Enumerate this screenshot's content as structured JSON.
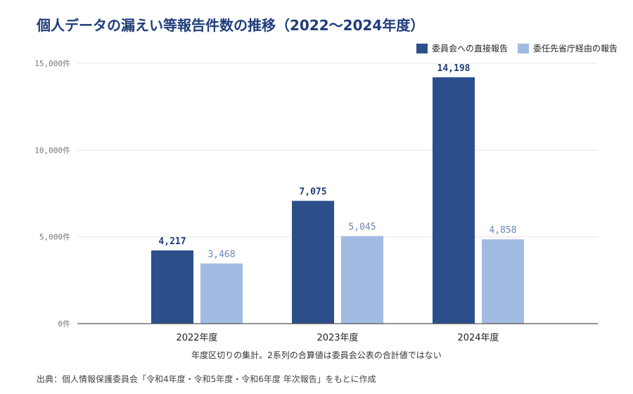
{
  "title": "個人データの漏えい等報告件数の推移（2022〜2024年度）",
  "note": "年度区切りの集計。2系列の合算値は委員会公表の合計値ではない",
  "source": "出典：個人情報保護委員会「令和4年度・令和5年度・令和6年度 年次報告」をもとに作成",
  "chart_data": {
    "type": "bar",
    "categories": [
      "2022年度",
      "2023年度",
      "2024年度"
    ],
    "series": [
      {
        "name": "委員会への直接報告",
        "values": [
          4217,
          7075,
          14198
        ],
        "labels": [
          "4,217",
          "7,075",
          "14,198"
        ],
        "color": "#2c4f8c",
        "label_color": "#1f3d7a",
        "label_bold": true
      },
      {
        "name": "委任先省庁経由の報告",
        "values": [
          3468,
          5045,
          4858
        ],
        "labels": [
          "3,468",
          "5,045",
          "4,858"
        ],
        "color": "#a2bbe2",
        "label_color": "#6a87b8",
        "label_bold": false
      }
    ],
    "ylim": [
      0,
      15000
    ],
    "yticks": [
      0,
      5000,
      10000,
      15000
    ],
    "ytick_labels": [
      "0件",
      "5,000件",
      "10,000件",
      "15,000件"
    ],
    "legend_position": "top-right",
    "grid": true
  }
}
